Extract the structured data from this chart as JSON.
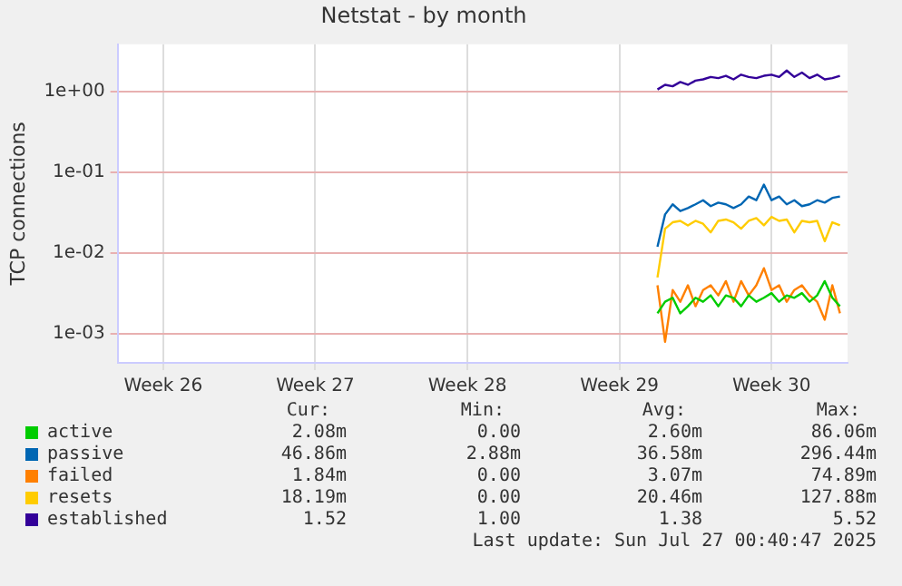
{
  "chart_data": {
    "type": "line",
    "title": "Netstat - by month",
    "ylabel": "TCP connections",
    "log": "y",
    "grid": true,
    "legend": "bottom",
    "marker": "none",
    "line_style": "solid",
    "categories": [
      null,
      null,
      null,
      null,
      null,
      null,
      "Week 26",
      null,
      null,
      null,
      null,
      null,
      null,
      null,
      null,
      null,
      null,
      null,
      null,
      null,
      null,
      null,
      null,
      null,
      null,
      null,
      "Week 27",
      null,
      null,
      null,
      null,
      null,
      null,
      null,
      null,
      null,
      null,
      null,
      null,
      null,
      null,
      null,
      null,
      null,
      null,
      null,
      "Week 28",
      null,
      null,
      null,
      null,
      null,
      null,
      null,
      null,
      null,
      null,
      null,
      null,
      null,
      null,
      null,
      null,
      null,
      null,
      null,
      "Week 29",
      null,
      null,
      null,
      null,
      null,
      null,
      null,
      null,
      null,
      null,
      null,
      null,
      null,
      null,
      null,
      null,
      null,
      null,
      null,
      "Week 30",
      null,
      null,
      null,
      null,
      null,
      null,
      null,
      null,
      null,
      null
    ],
    "ylim": [
      0.00044,
      3.8
    ],
    "yticks": [
      {
        "value": 0.001,
        "label": "1e-03"
      },
      {
        "value": 0.01,
        "label": "1e-02"
      },
      {
        "value": 0.1,
        "label": "1e-01"
      },
      {
        "value": 1,
        "label": "1e+00"
      }
    ],
    "series": [
      {
        "name": "active",
        "color": "#00cc00",
        "values": [
          null,
          null,
          null,
          null,
          null,
          null,
          null,
          null,
          null,
          null,
          null,
          null,
          null,
          null,
          null,
          null,
          null,
          null,
          null,
          null,
          null,
          null,
          null,
          null,
          null,
          null,
          null,
          null,
          null,
          null,
          null,
          null,
          null,
          null,
          null,
          null,
          null,
          null,
          null,
          null,
          null,
          null,
          null,
          null,
          null,
          null,
          null,
          null,
          null,
          null,
          null,
          null,
          null,
          null,
          null,
          null,
          null,
          null,
          null,
          null,
          null,
          null,
          null,
          null,
          null,
          null,
          null,
          null,
          null,
          null,
          null,
          0.0018,
          0.0025,
          0.0028,
          0.0018,
          0.0022,
          0.0028,
          0.0025,
          0.003,
          0.0022,
          0.003,
          0.0028,
          0.0022,
          0.003,
          0.0025,
          0.0028,
          0.0032,
          0.0025,
          0.003,
          0.0028,
          0.0032,
          0.0025,
          0.003,
          0.0045,
          0.0028,
          0.0022,
          null
        ]
      },
      {
        "name": "passive",
        "color": "#0066b3",
        "values": [
          null,
          null,
          null,
          null,
          null,
          null,
          null,
          null,
          null,
          null,
          null,
          null,
          null,
          null,
          null,
          null,
          null,
          null,
          null,
          null,
          null,
          null,
          null,
          null,
          null,
          null,
          null,
          null,
          null,
          null,
          null,
          null,
          null,
          null,
          null,
          null,
          null,
          null,
          null,
          null,
          null,
          null,
          null,
          null,
          null,
          null,
          null,
          null,
          null,
          null,
          null,
          null,
          null,
          null,
          null,
          null,
          null,
          null,
          null,
          null,
          null,
          null,
          null,
          null,
          null,
          null,
          null,
          null,
          null,
          null,
          null,
          0.012,
          0.03,
          0.04,
          0.033,
          0.036,
          0.04,
          0.045,
          0.038,
          0.042,
          0.04,
          0.036,
          0.04,
          0.05,
          0.045,
          0.07,
          0.045,
          0.05,
          0.04,
          0.045,
          0.038,
          0.04,
          0.045,
          0.042,
          0.048,
          0.05,
          null
        ]
      },
      {
        "name": "failed",
        "color": "#ff8000",
        "values": [
          null,
          null,
          null,
          null,
          null,
          null,
          null,
          null,
          null,
          null,
          null,
          null,
          null,
          null,
          null,
          null,
          null,
          null,
          null,
          null,
          null,
          null,
          null,
          null,
          null,
          null,
          null,
          null,
          null,
          null,
          null,
          null,
          null,
          null,
          null,
          null,
          null,
          null,
          null,
          null,
          null,
          null,
          null,
          null,
          null,
          null,
          null,
          null,
          null,
          null,
          null,
          null,
          null,
          null,
          null,
          null,
          null,
          null,
          null,
          null,
          null,
          null,
          null,
          null,
          null,
          null,
          null,
          null,
          null,
          null,
          null,
          0.004,
          0.0008,
          0.0035,
          0.0025,
          0.004,
          0.0022,
          0.0035,
          0.004,
          0.003,
          0.0045,
          0.0025,
          0.0045,
          0.003,
          0.004,
          0.0065,
          0.0035,
          0.004,
          0.0025,
          0.0035,
          0.004,
          0.003,
          0.0025,
          0.0015,
          0.004,
          0.0018,
          null
        ]
      },
      {
        "name": "resets",
        "color": "#ffcc00",
        "values": [
          null,
          null,
          null,
          null,
          null,
          null,
          null,
          null,
          null,
          null,
          null,
          null,
          null,
          null,
          null,
          null,
          null,
          null,
          null,
          null,
          null,
          null,
          null,
          null,
          null,
          null,
          null,
          null,
          null,
          null,
          null,
          null,
          null,
          null,
          null,
          null,
          null,
          null,
          null,
          null,
          null,
          null,
          null,
          null,
          null,
          null,
          null,
          null,
          null,
          null,
          null,
          null,
          null,
          null,
          null,
          null,
          null,
          null,
          null,
          null,
          null,
          null,
          null,
          null,
          null,
          null,
          null,
          null,
          null,
          null,
          null,
          0.005,
          0.02,
          0.024,
          0.025,
          0.022,
          0.025,
          0.023,
          0.018,
          0.025,
          0.026,
          0.024,
          0.02,
          0.025,
          0.027,
          0.022,
          0.028,
          0.025,
          0.026,
          0.018,
          0.025,
          0.024,
          0.025,
          0.014,
          0.024,
          0.022,
          null
        ]
      },
      {
        "name": "established",
        "color": "#330099",
        "values": [
          null,
          null,
          null,
          null,
          null,
          null,
          null,
          null,
          null,
          null,
          null,
          null,
          null,
          null,
          null,
          null,
          null,
          null,
          null,
          null,
          null,
          null,
          null,
          null,
          null,
          null,
          null,
          null,
          null,
          null,
          null,
          null,
          null,
          null,
          null,
          null,
          null,
          null,
          null,
          null,
          null,
          null,
          null,
          null,
          null,
          null,
          null,
          null,
          null,
          null,
          null,
          null,
          null,
          null,
          null,
          null,
          null,
          null,
          null,
          null,
          null,
          null,
          null,
          null,
          null,
          null,
          null,
          null,
          null,
          null,
          null,
          1.05,
          1.2,
          1.15,
          1.3,
          1.2,
          1.35,
          1.4,
          1.5,
          1.45,
          1.55,
          1.4,
          1.6,
          1.5,
          1.45,
          1.55,
          1.6,
          1.5,
          1.8,
          1.5,
          1.7,
          1.45,
          1.6,
          1.4,
          1.45,
          1.55,
          null
        ]
      }
    ],
    "annotations": [
      "Cur: Min: Avg: Max:",
      "2.08m 0.00 2.60m 86.06m",
      "46.86m 2.88m 36.58m 296.44m",
      "1.84m 0.00 3.07m 74.89m",
      "18.19m 0.00 20.46m 127.88m",
      "1.52 1.00 1.38 5.52",
      "Last update: Sun Jul 27 00:40:47 2025"
    ]
  }
}
